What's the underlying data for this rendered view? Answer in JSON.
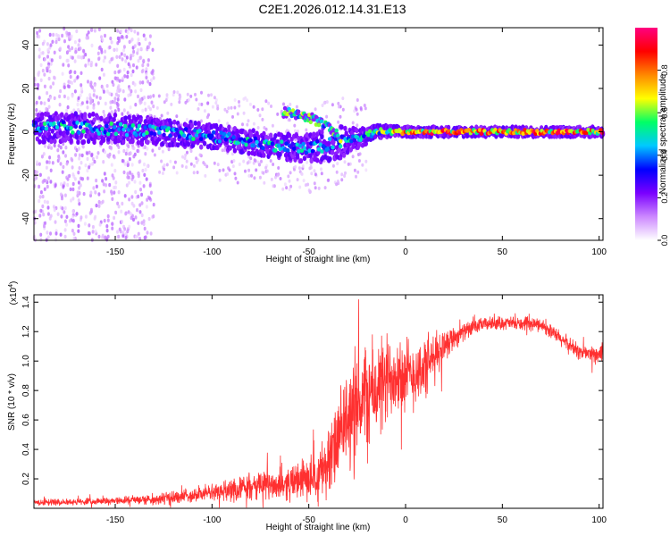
{
  "title": "C2E1.2026.012.14.31.E13",
  "chart_data": [
    {
      "type": "heatmap",
      "name": "spectrogram",
      "xlabel": "Height of straight line (km)",
      "ylabel": "Frequency (Hz)",
      "xlim": [
        -192,
        102
      ],
      "ylim": [
        -50,
        48
      ],
      "xticks": [
        -150,
        -100,
        -50,
        0,
        50,
        100
      ],
      "yticks": [
        -40,
        -20,
        0,
        20,
        40
      ],
      "colorbar": {
        "label": "Normalized spectral amplitude",
        "range": [
          0,
          1
        ],
        "ticks": [
          "0.0",
          "0.2",
          "0.4",
          "0.6",
          "0.8"
        ],
        "tick_values": [
          0.0,
          0.2,
          0.4,
          0.6,
          0.8
        ],
        "colors": [
          "#ffffff",
          "#cc88ff",
          "#7a00ff",
          "#0000ff",
          "#00c8ff",
          "#00ff66",
          "#ffff00",
          "#ff8800",
          "#ff0000",
          "#ff0080"
        ]
      },
      "ridge": {
        "x": [
          -192,
          -150,
          -100,
          -70,
          -50,
          -35,
          -25,
          -15,
          0,
          20,
          102
        ],
        "y": [
          2,
          1.5,
          -2,
          -6,
          -8,
          -5,
          -3,
          0,
          0,
          0,
          0
        ],
        "halfwidth": [
          6,
          6,
          5,
          5,
          6,
          7,
          4,
          3,
          2,
          2,
          2
        ],
        "amplitude": [
          0.5,
          0.5,
          0.5,
          0.5,
          0.45,
          0.45,
          0.5,
          0.6,
          0.85,
          0.85,
          0.85
        ]
      },
      "secondary_branch": {
        "x": [
          -63,
          -55,
          -48,
          -40,
          -33
        ],
        "y": [
          9,
          8,
          6,
          2,
          -3
        ],
        "amplitude": 0.55
      }
    },
    {
      "type": "line",
      "name": "snr",
      "xlabel": "Height of straight line (km)",
      "ylabel": "SNR (10 * v/v)",
      "scale_label": "(x10",
      "scale_exp": "4",
      "scale_close": ")",
      "xlim": [
        -192,
        102
      ],
      "ylim": [
        0,
        1.45
      ],
      "xticks": [
        -150,
        -100,
        -50,
        0,
        50,
        100
      ],
      "yticks": [
        "0.2",
        "0.4",
        "0.6",
        "0.8",
        "1.0",
        "1.2",
        "1.4"
      ],
      "ytick_values": [
        0.2,
        0.4,
        0.6,
        0.8,
        1.0,
        1.2,
        1.4
      ],
      "color": "#ff3030",
      "envelope": {
        "x": [
          -192,
          -150,
          -120,
          -100,
          -80,
          -60,
          -50,
          -40,
          -35,
          -30,
          -25,
          -20,
          -15,
          -10,
          -5,
          0,
          5,
          10,
          15,
          20,
          30,
          40,
          50,
          60,
          70,
          80,
          90,
          102
        ],
        "y": [
          0.04,
          0.05,
          0.07,
          0.11,
          0.14,
          0.17,
          0.2,
          0.3,
          0.45,
          0.6,
          0.72,
          0.75,
          0.8,
          0.85,
          0.95,
          0.88,
          0.92,
          0.95,
          1.02,
          1.12,
          1.2,
          1.25,
          1.26,
          1.25,
          1.25,
          1.15,
          1.06,
          1.04
        ],
        "noise": [
          0.02,
          0.02,
          0.04,
          0.05,
          0.08,
          0.1,
          0.12,
          0.2,
          0.25,
          0.3,
          0.35,
          0.35,
          0.3,
          0.3,
          0.25,
          0.25,
          0.2,
          0.2,
          0.15,
          0.1,
          0.05,
          0.04,
          0.04,
          0.04,
          0.04,
          0.05,
          0.05,
          0.05
        ]
      }
    }
  ]
}
